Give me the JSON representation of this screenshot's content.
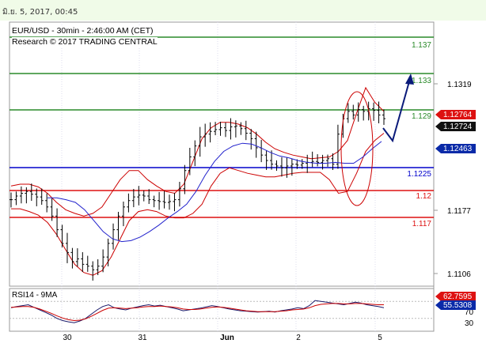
{
  "header": {
    "datetime": "มิ.ย. 5, 2017, 00:45"
  },
  "chart_info": {
    "title": "EUR/USD - 30min - 2:46:00 AM (CET)",
    "subtitle": "Research © 2017 TRADING CENTRAL"
  },
  "colors": {
    "resistance": "#2a8a2a",
    "support": "#dd1111",
    "pivot": "#0000cc",
    "bands": "#cc0000",
    "ma": "#2222cc",
    "arrow": "#0a1a7a",
    "price": "#000000"
  },
  "chart_data": [
    {
      "type": "candlestick",
      "title": "EUR/USD - 30min - 2:46:00 AM (CET)",
      "x_tick_labels": [
        "30",
        "31",
        "Jun",
        "2",
        "5"
      ],
      "y_tick_labels": [
        "1.1319",
        "1.1177",
        "1.1106"
      ],
      "ylim": [
        1.1088,
        1.1378
      ],
      "levels": [
        {
          "value": 1.137,
          "label": "1.137",
          "kind": "resistance"
        },
        {
          "value": 1.133,
          "label": "1.133",
          "kind": "resistance"
        },
        {
          "value": 1.129,
          "label": "1.129",
          "kind": "resistance"
        },
        {
          "value": 1.1225,
          "label": "1.1225",
          "kind": "pivot"
        },
        {
          "value": 1.12,
          "label": "1.12",
          "kind": "support"
        },
        {
          "value": 1.117,
          "label": "1.117",
          "kind": "support"
        }
      ],
      "price_badges": [
        {
          "label": "1.12764",
          "color": "#dd1111"
        },
        {
          "label": "1.12724",
          "color": "#111111"
        },
        {
          "label": "1.12463",
          "color": "#0a2aa8"
        }
      ],
      "forecast_path": [
        [
          1.1265,
          1.1255
        ],
        [
          1.1332
        ]
      ],
      "price_series": [
        1.1183,
        1.1187,
        1.119,
        1.1192,
        1.1189,
        1.1186,
        1.1182,
        1.1175,
        1.1165,
        1.115,
        1.1135,
        1.1125,
        1.1115,
        1.1118,
        1.1112,
        1.111,
        1.1106,
        1.111,
        1.112,
        1.1135,
        1.115,
        1.1165,
        1.1175,
        1.1182,
        1.1186,
        1.1188,
        1.1187,
        1.1183,
        1.1182,
        1.1181,
        1.118,
        1.1181,
        1.1183,
        1.1195,
        1.1215,
        1.123,
        1.1242,
        1.1252,
        1.1255,
        1.1258,
        1.126,
        1.1262,
        1.1259,
        1.1263,
        1.1264,
        1.1261,
        1.1256,
        1.125,
        1.124,
        1.1232,
        1.1226,
        1.1222,
        1.122,
        1.1218,
        1.122,
        1.1222,
        1.1221,
        1.1223,
        1.1224,
        1.1225,
        1.1224,
        1.1226,
        1.1228,
        1.1222,
        1.1255,
        1.1272,
        1.128,
        1.1276,
        1.1282,
        1.128,
        1.1283,
        1.1281,
        1.1276,
        1.1272
      ],
      "upper_band": [
        1.1198,
        1.12,
        1.12,
        1.1197,
        1.119,
        1.118,
        1.1172,
        1.1168,
        1.1165,
        1.1168,
        1.1175,
        1.119,
        1.1205,
        1.1215,
        1.1215,
        1.1205,
        1.1198,
        1.1192,
        1.119,
        1.12,
        1.1225,
        1.125,
        1.1262,
        1.1268,
        1.1268,
        1.1266,
        1.1262,
        1.1255,
        1.1246,
        1.1239,
        1.1235,
        1.1232,
        1.123,
        1.1228,
        1.1229,
        1.123,
        1.1236,
        1.1248,
        1.1278,
        1.1306,
        1.129,
        1.128
      ],
      "lower_band": [
        1.1173,
        1.1173,
        1.117,
        1.1166,
        1.1158,
        1.1145,
        1.1128,
        1.1112,
        1.1103,
        1.11,
        1.1105,
        1.112,
        1.114,
        1.116,
        1.117,
        1.1172,
        1.117,
        1.1165,
        1.1163,
        1.1163,
        1.1168,
        1.1178,
        1.1198,
        1.1212,
        1.1218,
        1.1215,
        1.1212,
        1.121,
        1.1208,
        1.1208,
        1.121,
        1.1212,
        1.1213,
        1.1213,
        1.1213,
        1.1205,
        1.119,
        1.1192,
        1.1212,
        1.1236,
        1.1248,
        1.1256
      ],
      "moving_average": [
        1.1185,
        1.1185,
        1.1183,
        1.118,
        1.1172,
        1.116,
        1.1148,
        1.114,
        1.1137,
        1.1138,
        1.1142,
        1.1148,
        1.1155,
        1.1163,
        1.117,
        1.1178,
        1.1192,
        1.121,
        1.1225,
        1.1236,
        1.1242,
        1.1245,
        1.1244,
        1.124,
        1.1235,
        1.1231,
        1.1229,
        1.1226,
        1.1224,
        1.1223,
        1.1223,
        1.1224,
        1.1223,
        1.1223,
        1.123,
        1.1239,
        1.1247
      ]
    },
    {
      "type": "line",
      "title": "RSI14 - 9MA",
      "ylim": [
        0,
        100
      ],
      "y_tick_labels": [
        "70",
        "30"
      ],
      "badges": [
        {
          "label": "62.7595",
          "color": "#dd1111"
        },
        {
          "label": "55.5308",
          "color": "#0a2aa8"
        }
      ],
      "series": [
        {
          "values": [
            55,
            58,
            60,
            62,
            56,
            50,
            44,
            38,
            30,
            25,
            22,
            20,
            24,
            30,
            40,
            50,
            58,
            62,
            55,
            52,
            50,
            54,
            57,
            60,
            62,
            59,
            61,
            58,
            55,
            52,
            48,
            50,
            52,
            54,
            57,
            60,
            58,
            55,
            52,
            50,
            48,
            47,
            46,
            45,
            46,
            47,
            45,
            48,
            50,
            52,
            55,
            53,
            60,
            72,
            70,
            68,
            66,
            64,
            62,
            65,
            68,
            66,
            62,
            60,
            58,
            55
          ]
        },
        {
          "values": [
            56,
            57,
            58,
            58,
            56,
            52,
            47,
            42,
            36,
            31,
            27,
            25,
            26,
            29,
            35,
            42,
            49,
            54,
            55,
            54,
            53,
            54,
            55,
            57,
            58,
            58,
            59,
            58,
            57,
            55,
            52,
            51,
            51,
            52,
            54,
            56,
            57,
            56,
            54,
            52,
            50,
            48,
            47,
            46,
            46,
            46,
            46,
            47,
            48,
            50,
            51,
            52,
            55,
            60,
            63,
            64,
            65,
            65,
            64,
            64,
            65,
            65,
            64,
            63,
            62,
            62
          ]
        }
      ]
    }
  ]
}
